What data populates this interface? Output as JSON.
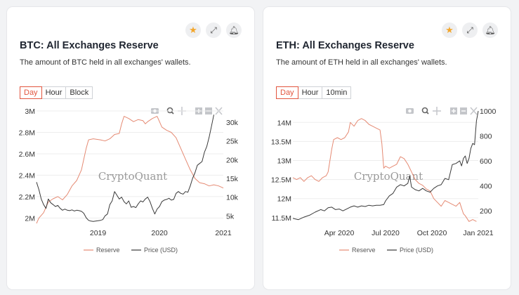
{
  "cards": [
    {
      "title": "BTC: All Exchanges Reserve",
      "subtitle": "The amount of BTC held in all exchanges' wallets.",
      "ranges": [
        "Day",
        "Hour",
        "Block"
      ],
      "active_range": "Day",
      "icons": [
        "star-icon",
        "expand-icon",
        "bell-icon"
      ]
    },
    {
      "title": "ETH: All Exchanges Reserve",
      "subtitle": "The amount of ETH held in all exchanges' wallets.",
      "ranges": [
        "Day",
        "Hour",
        "10min"
      ],
      "active_range": "Day",
      "icons": [
        "star-icon",
        "expand-icon",
        "bell-icon"
      ]
    }
  ],
  "modebar": [
    "camera-icon",
    "zoom-icon",
    "pan-icon",
    "zoom-in-icon",
    "zoom-out-icon",
    "autoscale-icon"
  ],
  "watermark": "CryptoQuant",
  "colors": {
    "reserve": "#e58a73",
    "price": "#3a3a3a",
    "accent": "#e2553e",
    "star": "#f3a62c"
  },
  "chart_data": [
    {
      "type": "line",
      "x_ticks": [
        {
          "label": "2019",
          "t": 0.26
        },
        {
          "label": "2020",
          "t": 0.52
        },
        {
          "label": "2021",
          "t": 0.79
        }
      ],
      "x_range": [
        0,
        0.79
      ],
      "y_left": {
        "ticks": [
          "3M",
          "2.8M",
          "2.6M",
          "2.4M",
          "2.2M",
          "2M"
        ],
        "range": [
          1.95,
          3.0
        ]
      },
      "y_right": {
        "ticks": [
          "30k",
          "25k",
          "20k",
          "15k",
          "10k",
          "5k"
        ],
        "range": [
          3000,
          33000
        ]
      },
      "legend": [
        "Reserve",
        "Price (USD)"
      ],
      "series": [
        {
          "name": "Reserve",
          "axis": "left",
          "points": [
            [
              0,
              1.95
            ],
            [
              0.01,
              2.0
            ],
            [
              0.03,
              2.05
            ],
            [
              0.05,
              2.15
            ],
            [
              0.07,
              2.18
            ],
            [
              0.09,
              2.2
            ],
            [
              0.11,
              2.17
            ],
            [
              0.13,
              2.22
            ],
            [
              0.15,
              2.3
            ],
            [
              0.17,
              2.35
            ],
            [
              0.19,
              2.45
            ],
            [
              0.2,
              2.55
            ],
            [
              0.21,
              2.65
            ],
            [
              0.22,
              2.73
            ],
            [
              0.24,
              2.74
            ],
            [
              0.27,
              2.73
            ],
            [
              0.29,
              2.72
            ],
            [
              0.31,
              2.74
            ],
            [
              0.33,
              2.78
            ],
            [
              0.35,
              2.79
            ],
            [
              0.36,
              2.88
            ],
            [
              0.37,
              2.95
            ],
            [
              0.39,
              2.93
            ],
            [
              0.41,
              2.9
            ],
            [
              0.43,
              2.92
            ],
            [
              0.45,
              2.91
            ],
            [
              0.46,
              2.88
            ],
            [
              0.47,
              2.9
            ],
            [
              0.49,
              2.93
            ],
            [
              0.51,
              2.95
            ],
            [
              0.52,
              2.9
            ],
            [
              0.53,
              2.85
            ],
            [
              0.55,
              2.82
            ],
            [
              0.57,
              2.8
            ],
            [
              0.59,
              2.75
            ],
            [
              0.61,
              2.65
            ],
            [
              0.63,
              2.55
            ],
            [
              0.65,
              2.45
            ],
            [
              0.67,
              2.37
            ],
            [
              0.69,
              2.33
            ],
            [
              0.71,
              2.32
            ],
            [
              0.73,
              2.3
            ],
            [
              0.75,
              2.31
            ],
            [
              0.77,
              2.3
            ],
            [
              0.79,
              2.28
            ]
          ]
        },
        {
          "name": "Price (USD)",
          "axis": "right",
          "points": [
            [
              0,
              14000
            ],
            [
              0.01,
              12000
            ],
            [
              0.02,
              9500
            ],
            [
              0.03,
              8000
            ],
            [
              0.04,
              7000
            ],
            [
              0.05,
              9500
            ],
            [
              0.06,
              8500
            ],
            [
              0.07,
              8000
            ],
            [
              0.08,
              7500
            ],
            [
              0.09,
              7800
            ],
            [
              0.1,
              7000
            ],
            [
              0.11,
              6500
            ],
            [
              0.12,
              6800
            ],
            [
              0.13,
              6500
            ],
            [
              0.14,
              6400
            ],
            [
              0.15,
              6600
            ],
            [
              0.16,
              6300
            ],
            [
              0.17,
              6500
            ],
            [
              0.18,
              6400
            ],
            [
              0.19,
              6200
            ],
            [
              0.2,
              5700
            ],
            [
              0.21,
              4500
            ],
            [
              0.22,
              3800
            ],
            [
              0.23,
              3600
            ],
            [
              0.24,
              3500
            ],
            [
              0.26,
              3700
            ],
            [
              0.27,
              3800
            ],
            [
              0.28,
              4000
            ],
            [
              0.29,
              5000
            ],
            [
              0.3,
              5500
            ],
            [
              0.31,
              8000
            ],
            [
              0.32,
              9000
            ],
            [
              0.33,
              11500
            ],
            [
              0.34,
              10500
            ],
            [
              0.35,
              9500
            ],
            [
              0.36,
              10000
            ],
            [
              0.37,
              8800
            ],
            [
              0.38,
              8200
            ],
            [
              0.39,
              9000
            ],
            [
              0.4,
              7300
            ],
            [
              0.41,
              7500
            ],
            [
              0.42,
              7200
            ],
            [
              0.43,
              8200
            ],
            [
              0.44,
              9000
            ],
            [
              0.45,
              8700
            ],
            [
              0.46,
              9500
            ],
            [
              0.47,
              10000
            ],
            [
              0.48,
              8800
            ],
            [
              0.49,
              7000
            ],
            [
              0.5,
              5500
            ],
            [
              0.51,
              6800
            ],
            [
              0.52,
              7500
            ],
            [
              0.53,
              8800
            ],
            [
              0.54,
              9200
            ],
            [
              0.55,
              9400
            ],
            [
              0.56,
              9700
            ],
            [
              0.57,
              9200
            ],
            [
              0.58,
              9400
            ],
            [
              0.59,
              11000
            ],
            [
              0.6,
              11500
            ],
            [
              0.61,
              11000
            ],
            [
              0.62,
              10800
            ],
            [
              0.63,
              11500
            ],
            [
              0.64,
              11300
            ],
            [
              0.65,
              13000
            ],
            [
              0.66,
              15000
            ],
            [
              0.67,
              16500
            ],
            [
              0.68,
              18500
            ],
            [
              0.69,
              19000
            ],
            [
              0.7,
              19500
            ],
            [
              0.71,
              22000
            ],
            [
              0.72,
              23500
            ],
            [
              0.73,
              26000
            ],
            [
              0.74,
              29000
            ],
            [
              0.75,
              32000
            ]
          ]
        }
      ]
    },
    {
      "type": "line",
      "x_ticks": [
        {
          "label": "Apr 2020",
          "t": 0.25
        },
        {
          "label": "Jul 2020",
          "t": 0.5
        },
        {
          "label": "Oct 2020",
          "t": 0.75
        },
        {
          "label": "Jan 2021",
          "t": 1.0
        }
      ],
      "x_range": [
        0,
        1.0
      ],
      "y_left": {
        "ticks": [
          "14M",
          "13.5M",
          "13M",
          "12.5M",
          "12M",
          "11.5M"
        ],
        "range": [
          11.35,
          14.3
        ]
      },
      "y_right": {
        "ticks": [
          "1000",
          "800",
          "600",
          "400",
          "200"
        ],
        "range": [
          100,
          1000
        ]
      },
      "legend": [
        "Reserve",
        "Price (USD)"
      ],
      "series": [
        {
          "name": "Reserve",
          "axis": "left",
          "points": [
            [
              0,
              12.55
            ],
            [
              0.02,
              12.5
            ],
            [
              0.04,
              12.55
            ],
            [
              0.06,
              12.45
            ],
            [
              0.08,
              12.55
            ],
            [
              0.1,
              12.6
            ],
            [
              0.12,
              12.5
            ],
            [
              0.14,
              12.45
            ],
            [
              0.16,
              12.55
            ],
            [
              0.18,
              12.6
            ],
            [
              0.19,
              12.7
            ],
            [
              0.2,
              13.0
            ],
            [
              0.21,
              13.3
            ],
            [
              0.22,
              13.55
            ],
            [
              0.24,
              13.6
            ],
            [
              0.26,
              13.55
            ],
            [
              0.28,
              13.6
            ],
            [
              0.3,
              13.75
            ],
            [
              0.31,
              14.0
            ],
            [
              0.33,
              13.9
            ],
            [
              0.35,
              14.05
            ],
            [
              0.37,
              14.1
            ],
            [
              0.39,
              14.05
            ],
            [
              0.41,
              13.95
            ],
            [
              0.43,
              13.9
            ],
            [
              0.45,
              13.85
            ],
            [
              0.47,
              13.8
            ],
            [
              0.48,
              13.45
            ],
            [
              0.49,
              12.8
            ],
            [
              0.5,
              12.85
            ],
            [
              0.52,
              12.8
            ],
            [
              0.54,
              12.85
            ],
            [
              0.56,
              12.9
            ],
            [
              0.58,
              13.1
            ],
            [
              0.6,
              13.05
            ],
            [
              0.62,
              12.9
            ],
            [
              0.64,
              12.7
            ],
            [
              0.66,
              12.5
            ],
            [
              0.68,
              12.4
            ],
            [
              0.7,
              12.35
            ],
            [
              0.72,
              12.25
            ],
            [
              0.74,
              12.2
            ],
            [
              0.76,
              12.0
            ],
            [
              0.78,
              11.9
            ],
            [
              0.8,
              11.8
            ],
            [
              0.82,
              11.95
            ],
            [
              0.84,
              11.9
            ],
            [
              0.86,
              11.85
            ],
            [
              0.88,
              11.8
            ],
            [
              0.9,
              11.9
            ],
            [
              0.91,
              11.75
            ],
            [
              0.92,
              11.6
            ],
            [
              0.93,
              11.55
            ],
            [
              0.95,
              11.4
            ],
            [
              0.97,
              11.45
            ],
            [
              0.99,
              11.4
            ]
          ]
        },
        {
          "name": "Price (USD)",
          "axis": "right",
          "points": [
            [
              0,
              140
            ],
            [
              0.03,
              130
            ],
            [
              0.06,
              150
            ],
            [
              0.09,
              165
            ],
            [
              0.12,
              190
            ],
            [
              0.15,
              210
            ],
            [
              0.17,
              200
            ],
            [
              0.19,
              225
            ],
            [
              0.21,
              230
            ],
            [
              0.23,
              210
            ],
            [
              0.25,
              215
            ],
            [
              0.27,
              200
            ],
            [
              0.29,
              215
            ],
            [
              0.31,
              230
            ],
            [
              0.33,
              240
            ],
            [
              0.35,
              230
            ],
            [
              0.37,
              240
            ],
            [
              0.39,
              235
            ],
            [
              0.41,
              245
            ],
            [
              0.43,
              240
            ],
            [
              0.45,
              245
            ],
            [
              0.47,
              245
            ],
            [
              0.49,
              250
            ],
            [
              0.5,
              280
            ],
            [
              0.52,
              320
            ],
            [
              0.54,
              340
            ],
            [
              0.56,
              390
            ],
            [
              0.58,
              410
            ],
            [
              0.6,
              400
            ],
            [
              0.62,
              420
            ],
            [
              0.63,
              480
            ],
            [
              0.64,
              390
            ],
            [
              0.66,
              370
            ],
            [
              0.68,
              360
            ],
            [
              0.7,
              380
            ],
            [
              0.72,
              360
            ],
            [
              0.74,
              350
            ],
            [
              0.76,
              380
            ],
            [
              0.78,
              400
            ],
            [
              0.8,
              410
            ],
            [
              0.82,
              460
            ],
            [
              0.84,
              450
            ],
            [
              0.86,
              570
            ],
            [
              0.88,
              580
            ],
            [
              0.9,
              600
            ],
            [
              0.91,
              560
            ],
            [
              0.92,
              620
            ],
            [
              0.93,
              640
            ],
            [
              0.94,
              580
            ],
            [
              0.95,
              620
            ],
            [
              0.96,
              700
            ],
            [
              0.97,
              740
            ],
            [
              0.98,
              730
            ],
            [
              0.99,
              920
            ],
            [
              1.0,
              1000
            ]
          ]
        }
      ]
    }
  ]
}
